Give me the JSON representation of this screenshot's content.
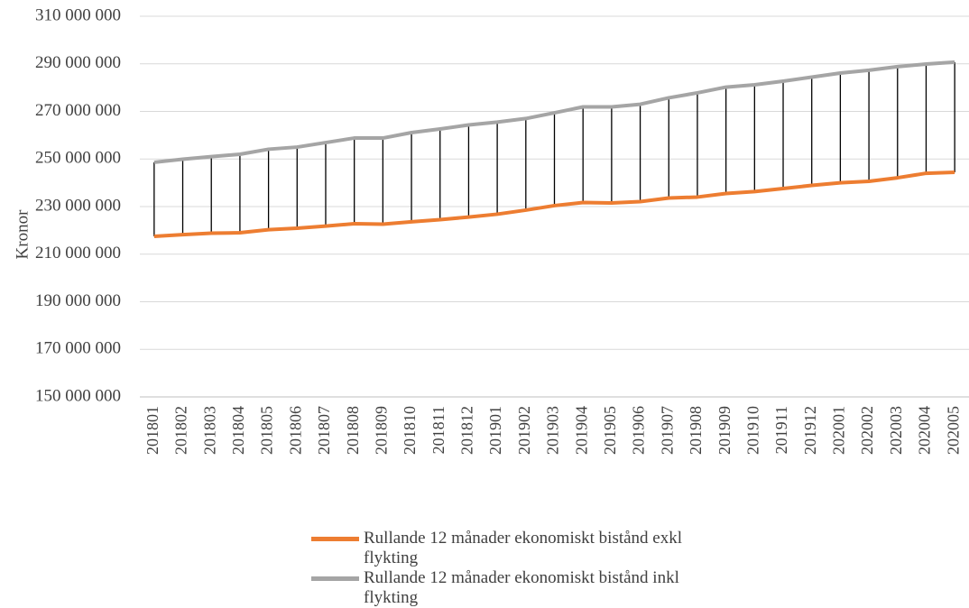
{
  "chart_data": {
    "type": "line",
    "y_label": "Kronor",
    "categories": [
      "201801",
      "201802",
      "201803",
      "201804",
      "201805",
      "201806",
      "201807",
      "201808",
      "201809",
      "201810",
      "201811",
      "201812",
      "201901",
      "201902",
      "201903",
      "201904",
      "201905",
      "201906",
      "201907",
      "201908",
      "201909",
      "201910",
      "201911",
      "201912",
      "202001",
      "202002",
      "202003",
      "202004",
      "202005"
    ],
    "series": [
      {
        "name": "Rullande 12 månader ekonomiskt bistånd exkl flykting",
        "color": "#ed7d31",
        "values": [
          217500000,
          218200000,
          218800000,
          219000000,
          220300000,
          220900000,
          221800000,
          222800000,
          222600000,
          223600000,
          224500000,
          225600000,
          226800000,
          228500000,
          230400000,
          231700000,
          231500000,
          232100000,
          233600000,
          234000000,
          235500000,
          236300000,
          237600000,
          238900000,
          240000000,
          240600000,
          242100000,
          244000000,
          244400000
        ]
      },
      {
        "name": "Rullande 12 månader ekonomiskt bistånd inkl flykting",
        "color": "#a5a5a5",
        "values": [
          248600000,
          249900000,
          251000000,
          252000000,
          254100000,
          255000000,
          256900000,
          258800000,
          258800000,
          261100000,
          262600000,
          264300000,
          265500000,
          267000000,
          269400000,
          271900000,
          271900000,
          273000000,
          275700000,
          277800000,
          280200000,
          281200000,
          282700000,
          284400000,
          286100000,
          287300000,
          288800000,
          289900000,
          290700000
        ]
      }
    ],
    "ylim": [
      150000000,
      310000000
    ],
    "yticks": [
      {
        "value": 150000000,
        "label": "150 000 000"
      },
      {
        "value": 170000000,
        "label": "170 000 000"
      },
      {
        "value": 190000000,
        "label": "190 000 000"
      },
      {
        "value": 210000000,
        "label": "210 000 000"
      },
      {
        "value": 230000000,
        "label": "230 000 000"
      },
      {
        "value": 250000000,
        "label": "250 000 000"
      },
      {
        "value": 270000000,
        "label": "270 000 000"
      },
      {
        "value": 290000000,
        "label": "290 000 000"
      },
      {
        "value": 310000000,
        "label": "310 000 000"
      }
    ],
    "grid": true,
    "high_low_lines": true,
    "legend": "bottom"
  }
}
